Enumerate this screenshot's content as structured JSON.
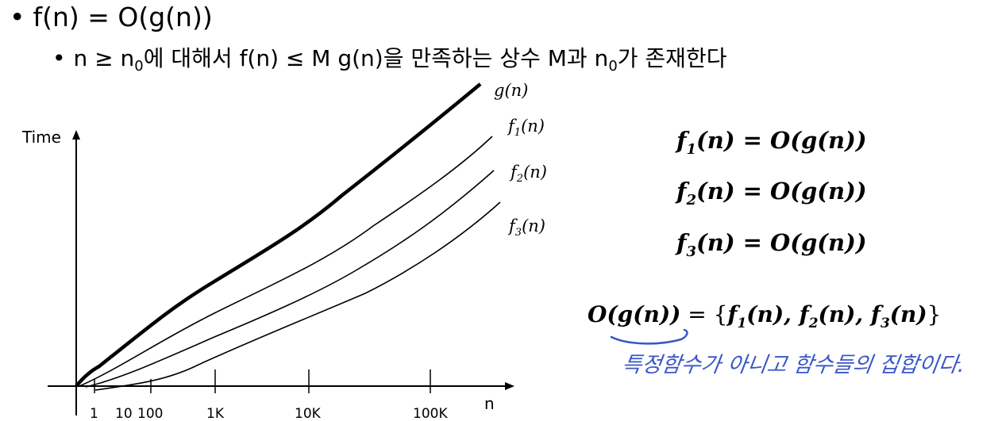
{
  "bullet1": {
    "dot": "•",
    "text": "f(n) = O(g(n))"
  },
  "bullet2": {
    "dot": "•",
    "part1": "n ≥ n",
    "sub1": "0",
    "part2": "에 대해서 f(n) ≤ M g(n)을 만족하는 상수 M과 n",
    "sub2": "0",
    "part3": "가 존재한다"
  },
  "graph": {
    "y_label": "Time",
    "x_label": "n",
    "ticks": [
      "1",
      "10",
      "100",
      "1K",
      "10K",
      "100K"
    ],
    "curves": [
      {
        "base": "g",
        "sub": "",
        "arg": "(n)"
      },
      {
        "base": "f",
        "sub": "1",
        "arg": "(n)"
      },
      {
        "base": "f",
        "sub": "2",
        "arg": "(n)"
      },
      {
        "base": "f",
        "sub": "3",
        "arg": "(n)"
      }
    ]
  },
  "equations": [
    {
      "left": "f",
      "sub": "1",
      "rest": "(n) = O(g(n))"
    },
    {
      "left": "f",
      "sub": "2",
      "rest": "(n) = O(g(n))"
    },
    {
      "left": "f",
      "sub": "3",
      "rest": "(n) = O(g(n))"
    }
  ],
  "set_equation": {
    "lhs": "O(g(n))",
    "eq": " = {",
    "f1": "f",
    "s1": "1",
    "a1": "(n), ",
    "f2": "f",
    "s2": "2",
    "a2": "(n), ",
    "f3": "f",
    "s3": "3",
    "a3": "(n)",
    "close": "}"
  },
  "handwritten_note": "특정함수가 아니고 함수들의 집합이다.",
  "colors": {
    "ink": "#000000",
    "annotation": "#3a57c8"
  }
}
